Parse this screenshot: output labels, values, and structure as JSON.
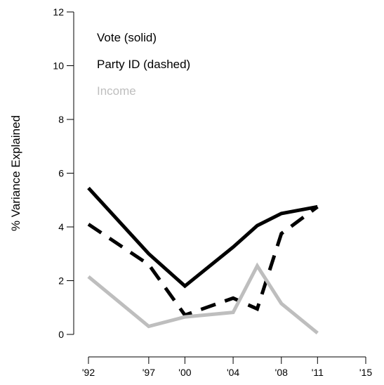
{
  "chart_data": {
    "type": "line",
    "ylabel": "% Variance Explained",
    "xlabel": "",
    "x_tick_labels": [
      "'92",
      "'97",
      "'00",
      "'04",
      "'08",
      "'11",
      "'15"
    ],
    "y_tick_labels": [
      "0",
      "2",
      "4",
      "6",
      "8",
      "10",
      "12"
    ],
    "xlim": [
      1992,
      2015
    ],
    "ylim": [
      0,
      12
    ],
    "grid": false,
    "legend_placement": "top-left",
    "series": [
      {
        "name": "Vote (solid)",
        "style": "solid",
        "color": "#000000",
        "x": [
          1992,
          1997,
          2000,
          2004,
          2006,
          2008,
          2011
        ],
        "y": [
          5.45,
          3.0,
          1.8,
          3.25,
          4.05,
          4.5,
          4.75
        ]
      },
      {
        "name": "Party ID (dashed)",
        "style": "dashed",
        "color": "#000000",
        "x": [
          1992,
          1997,
          2000,
          2004,
          2006,
          2008,
          2011
        ],
        "y": [
          4.1,
          2.6,
          0.72,
          1.35,
          0.95,
          3.75,
          4.75
        ]
      },
      {
        "name": "Income",
        "style": "solid",
        "color": "#bebebe",
        "x": [
          1992,
          1997,
          2000,
          2004,
          2006,
          2008,
          2011
        ],
        "y": [
          2.15,
          0.3,
          0.65,
          0.82,
          2.55,
          1.15,
          0.05
        ]
      }
    ]
  }
}
